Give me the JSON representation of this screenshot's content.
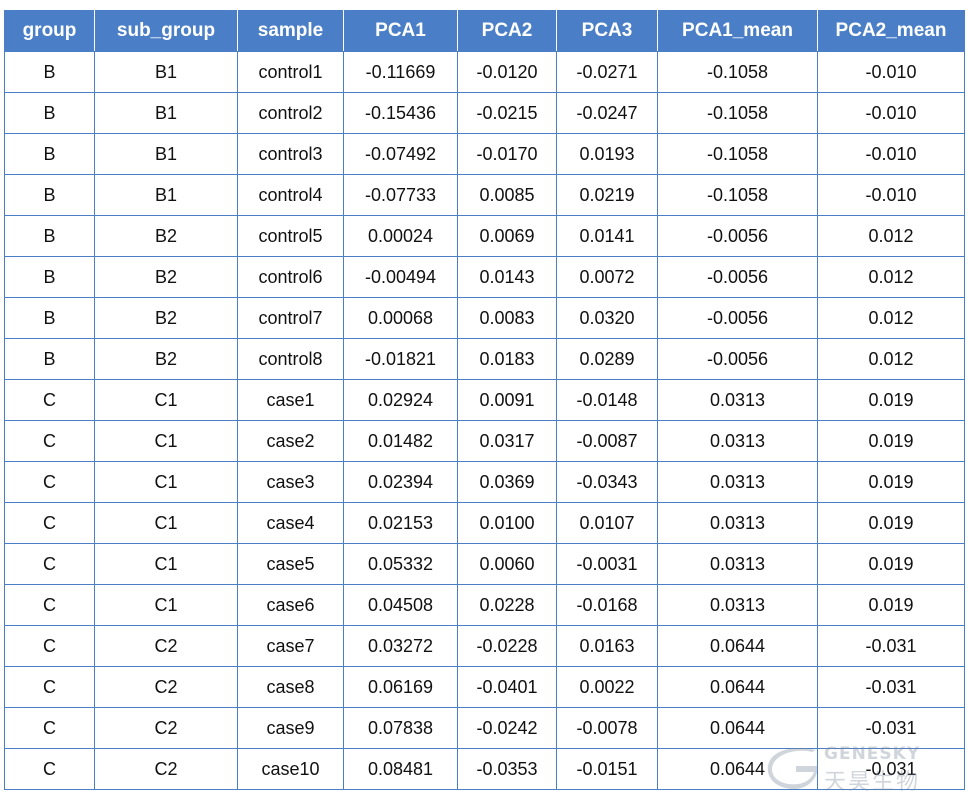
{
  "table": {
    "columns": [
      "group",
      "sub_group",
      "sample",
      "PCA1",
      "PCA2",
      "PCA3",
      "PCA1_mean",
      "PCA2_mean"
    ],
    "rows": [
      [
        "B",
        "B1",
        "control1",
        "-0.11669",
        "-0.0120",
        "-0.0271",
        "-0.1058",
        "-0.010"
      ],
      [
        "B",
        "B1",
        "control2",
        "-0.15436",
        "-0.0215",
        "-0.0247",
        "-0.1058",
        "-0.010"
      ],
      [
        "B",
        "B1",
        "control3",
        "-0.07492",
        "-0.0170",
        "0.0193",
        "-0.1058",
        "-0.010"
      ],
      [
        "B",
        "B1",
        "control4",
        "-0.07733",
        "0.0085",
        "0.0219",
        "-0.1058",
        "-0.010"
      ],
      [
        "B",
        "B2",
        "control5",
        "0.00024",
        "0.0069",
        "0.0141",
        "-0.0056",
        "0.012"
      ],
      [
        "B",
        "B2",
        "control6",
        "-0.00494",
        "0.0143",
        "0.0072",
        "-0.0056",
        "0.012"
      ],
      [
        "B",
        "B2",
        "control7",
        "0.00068",
        "0.0083",
        "0.0320",
        "-0.0056",
        "0.012"
      ],
      [
        "B",
        "B2",
        "control8",
        "-0.01821",
        "0.0183",
        "0.0289",
        "-0.0056",
        "0.012"
      ],
      [
        "C",
        "C1",
        "case1",
        "0.02924",
        "0.0091",
        "-0.0148",
        "0.0313",
        "0.019"
      ],
      [
        "C",
        "C1",
        "case2",
        "0.01482",
        "0.0317",
        "-0.0087",
        "0.0313",
        "0.019"
      ],
      [
        "C",
        "C1",
        "case3",
        "0.02394",
        "0.0369",
        "-0.0343",
        "0.0313",
        "0.019"
      ],
      [
        "C",
        "C1",
        "case4",
        "0.02153",
        "0.0100",
        "0.0107",
        "0.0313",
        "0.019"
      ],
      [
        "C",
        "C1",
        "case5",
        "0.05332",
        "0.0060",
        "-0.0031",
        "0.0313",
        "0.019"
      ],
      [
        "C",
        "C1",
        "case6",
        "0.04508",
        "0.0228",
        "-0.0168",
        "0.0313",
        "0.019"
      ],
      [
        "C",
        "C2",
        "case7",
        "0.03272",
        "-0.0228",
        "0.0163",
        "0.0644",
        "-0.031"
      ],
      [
        "C",
        "C2",
        "case8",
        "0.06169",
        "-0.0401",
        "0.0022",
        "0.0644",
        "-0.031"
      ],
      [
        "C",
        "C2",
        "case9",
        "0.07838",
        "-0.0242",
        "-0.0078",
        "0.0644",
        "-0.031"
      ],
      [
        "C",
        "C2",
        "case10",
        "0.08481",
        "-0.0353",
        "-0.0151",
        "0.0644",
        "-0.031"
      ]
    ]
  },
  "colors": {
    "header_bg": "#4a7fc7",
    "header_text": "#ffffff",
    "border": "#4a7fc7"
  },
  "watermark": {
    "icon": "genesky-logo-icon",
    "text_en": "GENESKY",
    "text_cn": "天昊生物"
  }
}
